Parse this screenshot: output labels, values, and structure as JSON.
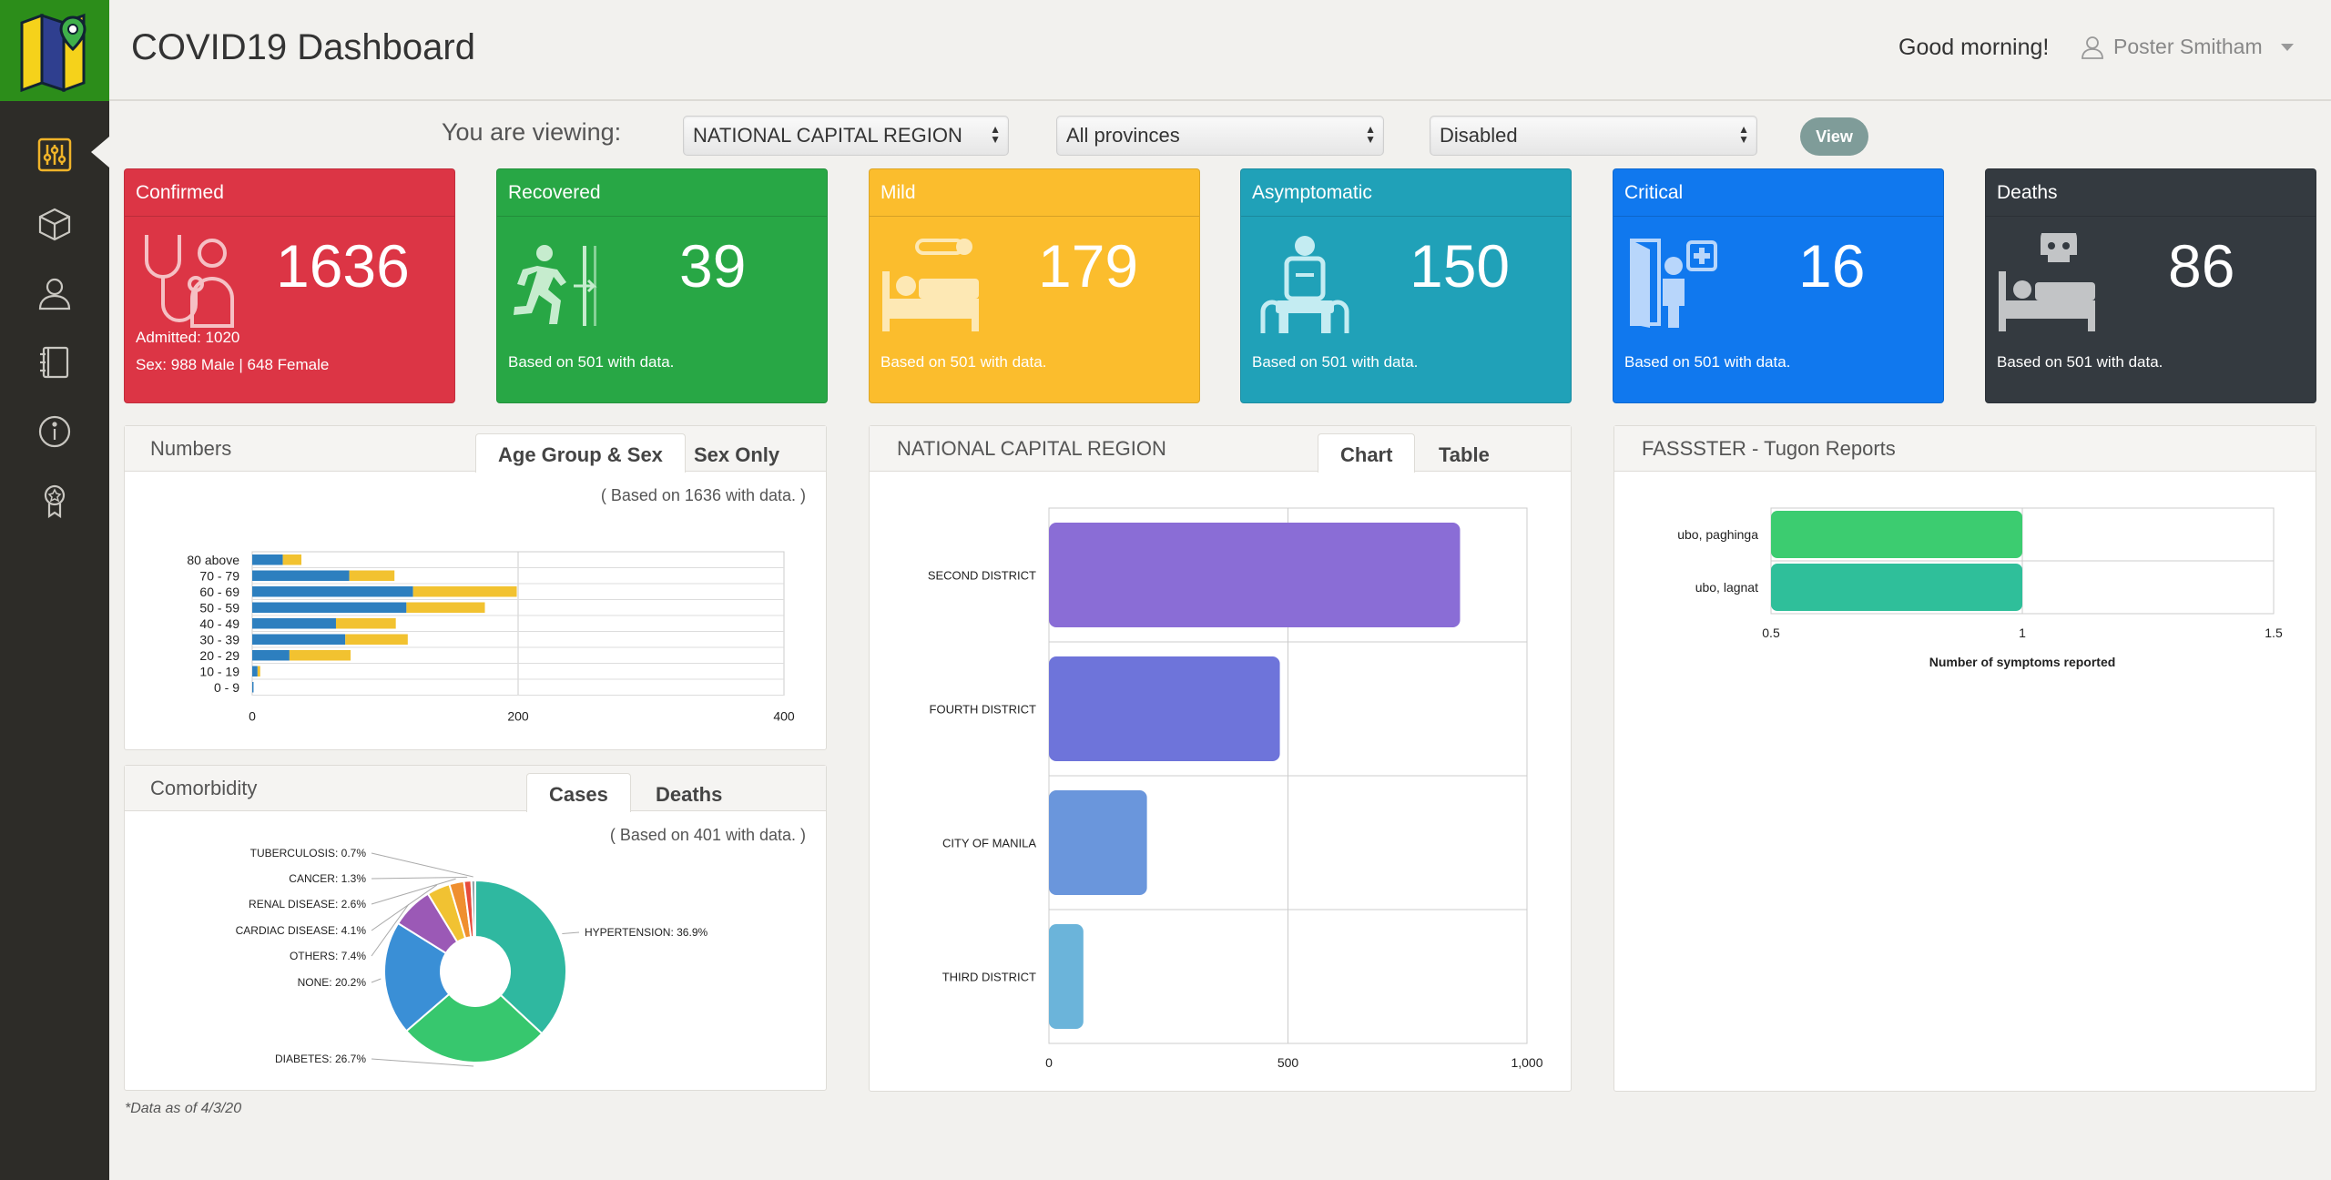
{
  "app": {
    "title": "COVID19 Dashboard"
  },
  "header": {
    "greeting": "Good morning!",
    "user_name": "Poster Smitham"
  },
  "sidebar": {
    "items": [
      {
        "name": "filters",
        "active": true
      },
      {
        "name": "package"
      },
      {
        "name": "user"
      },
      {
        "name": "notebook"
      },
      {
        "name": "info"
      },
      {
        "name": "badge"
      }
    ]
  },
  "filters": {
    "label": "You are viewing:",
    "region": "NATIONAL CAPITAL REGION",
    "province": "All provinces",
    "status": "Disabled",
    "view_label": "View"
  },
  "cards": [
    {
      "title": "Confirmed",
      "value": "1636",
      "note1": "Admitted: 1020",
      "note2": "Sex: 988 Male | 648 Female",
      "color": "#dc3545"
    },
    {
      "title": "Recovered",
      "value": "39",
      "note1": "Based on 501 with data.",
      "color": "#28a745"
    },
    {
      "title": "Mild",
      "value": "179",
      "note1": "Based on 501 with data.",
      "color": "#fbbd2d"
    },
    {
      "title": "Asymptomatic",
      "value": "150",
      "note1": "Based on 501 with data.",
      "color": "#20a1b8"
    },
    {
      "title": "Critical",
      "value": "16",
      "note1": "Based on 501 with data.",
      "color": "#1078ee"
    },
    {
      "title": "Deaths",
      "value": "86",
      "note1": "Based on 501 with data.",
      "color": "#343a40"
    }
  ],
  "numbers_panel": {
    "title": "Numbers",
    "tabs": [
      "Age Group & Sex",
      "Sex Only"
    ],
    "based_note": "( Based on 1636 with data. )"
  },
  "comorbidity_panel": {
    "title": "Comorbidity",
    "tabs": [
      "Cases",
      "Deaths"
    ],
    "based_note": "( Based on 401 with data. )"
  },
  "region_panel": {
    "title": "NATIONAL CAPITAL REGION",
    "tabs": [
      "Chart",
      "Table"
    ]
  },
  "fassster_panel": {
    "title": "FASSSTER - Tugon Reports"
  },
  "footnote": "*Data as of 4/3/20",
  "chart_data": [
    {
      "type": "bar",
      "orientation": "horizontal",
      "stacked": true,
      "categories": [
        "80 above",
        "70 - 79",
        "60 - 69",
        "50 - 59",
        "40 - 49",
        "30 - 39",
        "20 - 29",
        "10 - 19",
        "0 - 9"
      ],
      "series": [
        {
          "values": [
            23,
            73,
            121,
            116,
            63,
            70,
            28,
            4,
            1
          ],
          "color": "#2d7fbf"
        },
        {
          "values": [
            14,
            34,
            78,
            59,
            45,
            47,
            46,
            2,
            0
          ],
          "color": "#f2c230"
        }
      ],
      "xlim": [
        0,
        400
      ],
      "xticks": [
        "0",
        "200",
        "400"
      ],
      "grid": true
    },
    {
      "type": "pie",
      "donut": true,
      "slices": [
        {
          "label": "HYPERTENSION: 36.9%",
          "value": 36.9,
          "color": "#2fb8a0"
        },
        {
          "label": "DIABETES: 26.7%",
          "value": 26.7,
          "color": "#37c76e"
        },
        {
          "label": "NONE: 20.2%",
          "value": 20.2,
          "color": "#3a8fd6"
        },
        {
          "label": "OTHERS: 7.4%",
          "value": 7.4,
          "color": "#9b59b6"
        },
        {
          "label": "CARDIAC DISEASE: 4.1%",
          "value": 4.1,
          "color": "#f1c232"
        },
        {
          "label": "RENAL DISEASE: 2.6%",
          "value": 2.6,
          "color": "#ef8f2f"
        },
        {
          "label": "CANCER: 1.3%",
          "value": 1.3,
          "color": "#e74c3c"
        },
        {
          "label": "TUBERCULOSIS: 0.7%",
          "value": 0.7,
          "color": "#95a5a6"
        }
      ]
    },
    {
      "type": "bar",
      "orientation": "horizontal",
      "categories": [
        "SECOND DISTRICT",
        "FOURTH DISTRICT",
        "CITY OF MANILA",
        "THIRD DISTRICT"
      ],
      "values": [
        860,
        483,
        205,
        72
      ],
      "colors": [
        "#8a6dd6",
        "#6e74da",
        "#6a96dc",
        "#6bb4da"
      ],
      "xlim": [
        0,
        1000
      ],
      "xticks": [
        "0",
        "500",
        "1,000"
      ],
      "grid": true
    },
    {
      "type": "bar",
      "orientation": "horizontal",
      "categories": [
        "ubo, paghinga",
        "ubo, lagnat"
      ],
      "values": [
        1,
        1
      ],
      "colors": [
        "#3ccc70",
        "#2fbf9a"
      ],
      "xlim": [
        0.5,
        1.5
      ],
      "xticks": [
        "0.5",
        "1",
        "1.5"
      ],
      "xlabel": "Number of symptoms reported",
      "grid": true
    }
  ]
}
